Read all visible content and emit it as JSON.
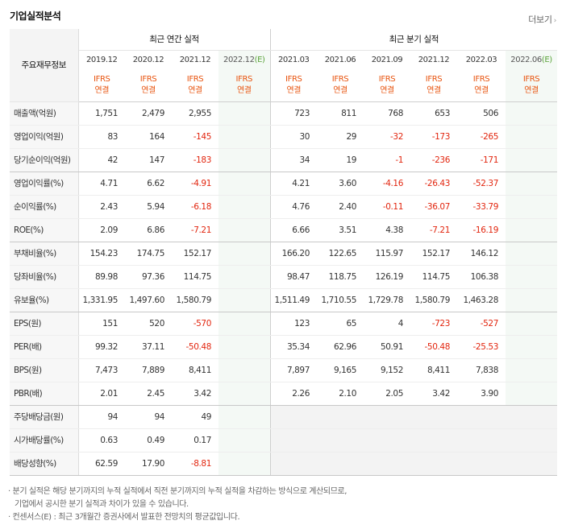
{
  "section_title": "기업실적분석",
  "more_link": "더보기",
  "table": {
    "row_header_label": "주요재무정보",
    "group_annual": "최근 연간 실적",
    "group_quarterly": "최근 분기 실적",
    "estimate_mark": "(E)",
    "annual_periods": [
      "2019.12",
      "2020.12",
      "2021.12",
      "2022.12"
    ],
    "quarterly_periods": [
      "2021.03",
      "2021.06",
      "2021.09",
      "2021.12",
      "2022.03",
      "2022.06"
    ],
    "ifrs_line1": "IFRS",
    "ifrs_line2": "연결",
    "rows": [
      {
        "label": "매출액(억원)",
        "annual": [
          "1,751",
          "2,479",
          "2,955",
          ""
        ],
        "quarterly": [
          "723",
          "811",
          "768",
          "653",
          "506",
          ""
        ]
      },
      {
        "label": "영업이익(억원)",
        "annual": [
          "83",
          "164",
          "-145",
          ""
        ],
        "quarterly": [
          "30",
          "29",
          "-32",
          "-173",
          "-265",
          ""
        ]
      },
      {
        "label": "당기순이익(억원)",
        "annual": [
          "42",
          "147",
          "-183",
          ""
        ],
        "quarterly": [
          "34",
          "19",
          "-1",
          "-236",
          "-171",
          ""
        ]
      },
      {
        "label": "영업이익률(%)",
        "annual": [
          "4.71",
          "6.62",
          "-4.91",
          ""
        ],
        "quarterly": [
          "4.21",
          "3.60",
          "-4.16",
          "-26.43",
          "-52.37",
          ""
        ]
      },
      {
        "label": "순이익률(%)",
        "annual": [
          "2.43",
          "5.94",
          "-6.18",
          ""
        ],
        "quarterly": [
          "4.76",
          "2.40",
          "-0.11",
          "-36.07",
          "-33.79",
          ""
        ]
      },
      {
        "label": "ROE(%)",
        "annual": [
          "2.09",
          "6.86",
          "-7.21",
          ""
        ],
        "quarterly": [
          "6.66",
          "3.51",
          "4.38",
          "-7.21",
          "-16.19",
          ""
        ]
      },
      {
        "label": "부채비율(%)",
        "annual": [
          "154.23",
          "174.75",
          "152.17",
          ""
        ],
        "quarterly": [
          "166.20",
          "122.65",
          "115.97",
          "152.17",
          "146.12",
          ""
        ]
      },
      {
        "label": "당좌비율(%)",
        "annual": [
          "89.98",
          "97.36",
          "114.75",
          ""
        ],
        "quarterly": [
          "98.47",
          "118.75",
          "126.19",
          "114.75",
          "106.38",
          ""
        ]
      },
      {
        "label": "유보율(%)",
        "annual": [
          "1,331.95",
          "1,497.60",
          "1,580.79",
          ""
        ],
        "quarterly": [
          "1,511.49",
          "1,710.55",
          "1,729.78",
          "1,580.79",
          "1,463.28",
          ""
        ]
      },
      {
        "label": "EPS(원)",
        "annual": [
          "151",
          "520",
          "-570",
          ""
        ],
        "quarterly": [
          "123",
          "65",
          "4",
          "-723",
          "-527",
          ""
        ]
      },
      {
        "label": "PER(배)",
        "annual": [
          "99.32",
          "37.11",
          "-50.48",
          ""
        ],
        "quarterly": [
          "35.34",
          "62.96",
          "50.91",
          "-50.48",
          "-25.53",
          ""
        ]
      },
      {
        "label": "BPS(원)",
        "annual": [
          "7,473",
          "7,889",
          "8,411",
          ""
        ],
        "quarterly": [
          "7,897",
          "9,165",
          "9,152",
          "8,411",
          "7,838",
          ""
        ]
      },
      {
        "label": "PBR(배)",
        "annual": [
          "2.01",
          "2.45",
          "3.42",
          ""
        ],
        "quarterly": [
          "2.26",
          "2.10",
          "2.05",
          "3.42",
          "3.90",
          ""
        ]
      },
      {
        "label": "주당배당금(원)",
        "annual": [
          "94",
          "94",
          "49",
          ""
        ],
        "quarterly": [
          "",
          "",
          "",
          "",
          "",
          ""
        ]
      },
      {
        "label": "시가배당률(%)",
        "annual": [
          "0.63",
          "0.49",
          "0.17",
          ""
        ],
        "quarterly": [
          "",
          "",
          "",
          "",
          "",
          ""
        ]
      },
      {
        "label": "배당성향(%)",
        "annual": [
          "62.59",
          "17.90",
          "-8.81",
          ""
        ],
        "quarterly": [
          "",
          "",
          "",
          "",
          "",
          ""
        ]
      }
    ]
  },
  "notes": {
    "line1": "· 분기 실적은 해당 분기까지의 누적 실적에서 직전 분기까지의 누적 실적을 차감하는 방식으로 계산되므로,",
    "line2": "기업에서 공시한 분기 실적과 차이가 있을 수 있습니다.",
    "line3": "· 컨센서스(E) : 최근 3개월간 증권사에서 발표한 전망치의 평균값입니다."
  },
  "colors": {
    "negative": "#e2260f",
    "ifrs_label": "#e8530e",
    "estimate_mark": "#5aa33a",
    "header_bg": "#f4f4f4"
  }
}
